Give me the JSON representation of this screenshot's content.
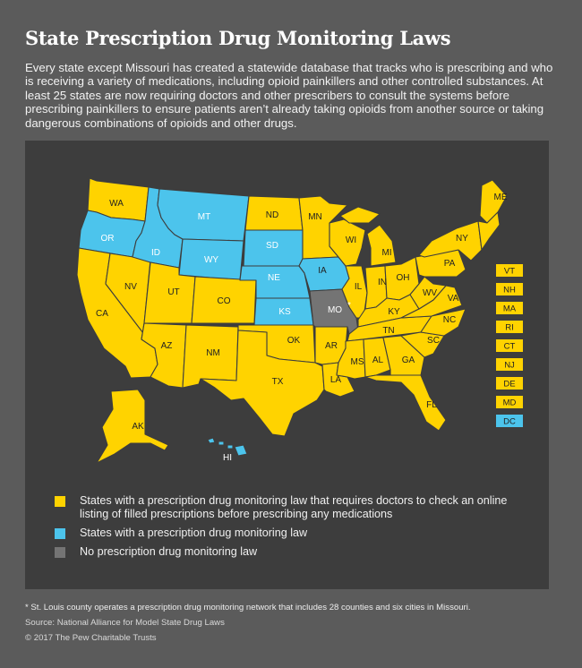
{
  "title": "State Prescription Drug Monitoring Laws",
  "intro": "Every state except Missouri has created a statewide database that tracks who is prescribing and who is receiving a variety of medications, including opioid painkillers and other controlled substances. At least 25 states are now requiring doctors and other prescribers to consult the systems before prescribing painkillers to ensure patients aren’t already taking opioids from another source or taking dangerous combinations of opioids and other drugs.",
  "colors": {
    "requires_check": "#ffd300",
    "monitoring_law": "#4cc4ec",
    "no_law": "#747474",
    "background": "#5b5b5b",
    "panel": "#3d3d3d"
  },
  "states": {
    "WA": "requires_check",
    "OR": "monitoring_law",
    "CA": "requires_check",
    "NV": "requires_check",
    "ID": "monitoring_law",
    "MT": "monitoring_law",
    "WY": "monitoring_law",
    "UT": "requires_check",
    "AZ": "requires_check",
    "CO": "requires_check",
    "NM": "requires_check",
    "ND": "requires_check",
    "SD": "monitoring_law",
    "NE": "monitoring_law",
    "KS": "monitoring_law",
    "OK": "requires_check",
    "TX": "requires_check",
    "MN": "requires_check",
    "IA": "monitoring_law",
    "MO": "no_law",
    "AR": "requires_check",
    "LA": "requires_check",
    "WI": "requires_check",
    "IL": "requires_check",
    "MI": "requires_check",
    "IN": "requires_check",
    "OH": "requires_check",
    "KY": "requires_check",
    "TN": "requires_check",
    "MS": "requires_check",
    "AL": "requires_check",
    "GA": "requires_check",
    "FL": "requires_check",
    "SC": "requires_check",
    "NC": "requires_check",
    "VA": "requires_check",
    "WV": "requires_check",
    "PA": "requires_check",
    "NY": "requires_check",
    "ME": "requires_check",
    "AK": "requires_check",
    "HI": "monitoring_law"
  },
  "map_labels": {
    "WA": "WA",
    "OR": "OR",
    "CA": "CA",
    "NV": "NV",
    "ID": "ID",
    "MT": "MT",
    "WY": "WY",
    "UT": "UT",
    "AZ": "AZ",
    "CO": "CO",
    "NM": "NM",
    "ND": "ND",
    "SD": "SD",
    "NE": "NE",
    "KS": "KS",
    "OK": "OK",
    "TX": "TX",
    "MN": "MN",
    "IA": "IA",
    "MO": "MO",
    "MO_asterisk": "*",
    "AR": "AR",
    "LA": "LA",
    "WI": "WI",
    "IL": "IL",
    "MI": "MI",
    "IN": "IN",
    "OH": "OH",
    "KY": "KY",
    "TN": "TN",
    "MS": "MS",
    "AL": "AL",
    "GA": "GA",
    "FL": "FL",
    "SC": "SC",
    "NC": "NC",
    "VA": "VA",
    "WV": "WV",
    "PA": "PA",
    "NY": "NY",
    "ME": "ME",
    "AK": "AK",
    "HI": "HI"
  },
  "small_states": [
    {
      "label": "VT",
      "status": "requires_check"
    },
    {
      "label": "NH",
      "status": "requires_check"
    },
    {
      "label": "MA",
      "status": "requires_check"
    },
    {
      "label": "RI",
      "status": "requires_check"
    },
    {
      "label": "CT",
      "status": "requires_check"
    },
    {
      "label": "NJ",
      "status": "requires_check"
    },
    {
      "label": "DE",
      "status": "requires_check"
    },
    {
      "label": "MD",
      "status": "requires_check"
    },
    {
      "label": "DC",
      "status": "monitoring_law"
    }
  ],
  "legend": [
    {
      "status": "requires_check",
      "text": "States with a prescription drug monitoring law that requires doctors to check an online listing of filled prescriptions before prescribing any medications"
    },
    {
      "status": "monitoring_law",
      "text": "States with a prescription drug monitoring law"
    },
    {
      "status": "no_law",
      "text": "No prescription drug monitoring law"
    }
  ],
  "footnote": "* St. Louis county operates a prescription drug monitoring network that includes 28 counties and six cities in Missouri.",
  "source": "Source: National Alliance for Model State Drug Laws",
  "copyright": "© 2017 The Pew Charitable Trusts"
}
